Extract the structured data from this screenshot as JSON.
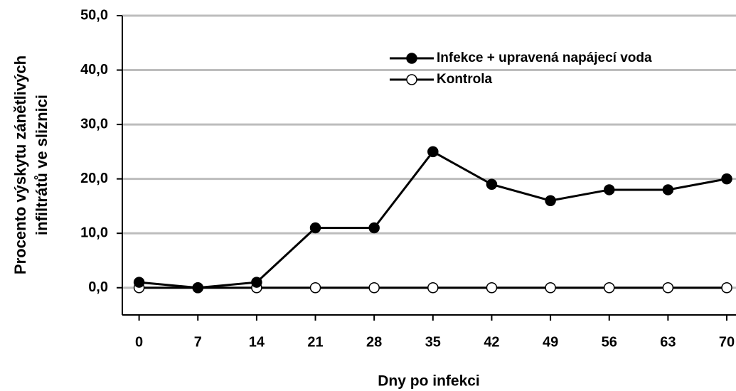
{
  "chart_data": {
    "type": "line",
    "xlabel": "Dny po infekci",
    "ylabel": [
      "Procento výskytu zánětlivých",
      "infiltrátů ve sliznici"
    ],
    "x": [
      0,
      7,
      14,
      21,
      28,
      35,
      42,
      49,
      56,
      63,
      70
    ],
    "series": [
      {
        "name": "Infekce + upravená napájecí voda",
        "color": "#000000",
        "marker_fill": "#000000",
        "values": [
          1,
          0,
          1,
          11,
          11,
          25,
          19,
          16,
          18,
          18,
          20
        ]
      },
      {
        "name": "Kontrola",
        "color": "#000000",
        "marker_fill": "#ffffff",
        "values": [
          0,
          0,
          0,
          0,
          0,
          0,
          0,
          0,
          0,
          0,
          0
        ]
      }
    ],
    "xlim": [
      -2,
      71.1
    ],
    "xticks": [
      0,
      7,
      14,
      21,
      28,
      35,
      42,
      49,
      56,
      63,
      70
    ],
    "ylim": [
      -5,
      50
    ],
    "yticks": [
      {
        "value": 0,
        "label": "0,0"
      },
      {
        "value": 10,
        "label": "10,0"
      },
      {
        "value": 20,
        "label": "20,0"
      },
      {
        "value": 30,
        "label": "30,0"
      },
      {
        "value": 40,
        "label": "40,0"
      },
      {
        "value": 50,
        "label": "50,0"
      }
    ],
    "grid": true,
    "legend": "upper right"
  }
}
